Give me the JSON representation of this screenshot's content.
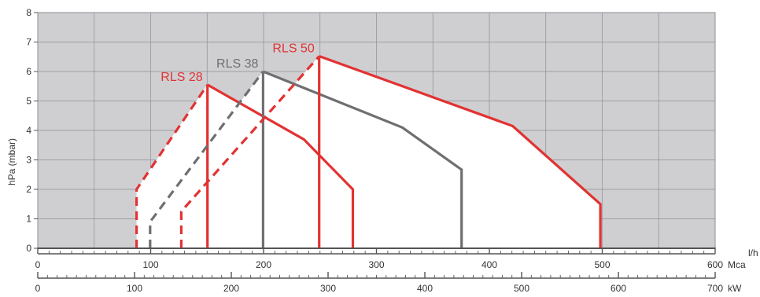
{
  "chart_data": {
    "type": "line",
    "title": "",
    "ylabel": "hPa (mbar)",
    "ylim": [
      0,
      8
    ],
    "yticks": [
      0,
      1,
      2,
      3,
      4,
      5,
      6,
      7,
      8
    ],
    "grid": true,
    "x_axes": [
      {
        "unit": "l/h",
        "unit_suffix": "Mca",
        "range": [
          0,
          600
        ],
        "ticks": [
          0,
          100,
          200,
          300,
          400,
          500,
          600
        ]
      },
      {
        "unit": "kW",
        "range": [
          0,
          700
        ],
        "ticks": [
          0,
          100,
          200,
          300,
          400,
          500,
          600,
          700
        ]
      }
    ],
    "colors": {
      "background": "#cfcfd2",
      "working_area": "#ffffff",
      "grid": "#8f8f93",
      "red": "#e23232",
      "gray": "#6f6f72"
    },
    "series": [
      {
        "name": "RLS 28",
        "color": "#e23232",
        "start": [
          [
            87.5,
            0
          ],
          [
            87.5,
            2.0
          ],
          [
            150.3,
            5.55
          ]
        ],
        "points": [
          [
            150.3,
            5.55
          ],
          [
            235.6,
            3.7
          ],
          [
            279.1,
            2.0
          ],
          [
            279.1,
            0
          ]
        ],
        "min_line": [
          [
            150.3,
            0
          ],
          [
            150.3,
            5.55
          ]
        ]
      },
      {
        "name": "RLS 38",
        "color": "#6f6f72",
        "start": [
          [
            99.5,
            0
          ],
          [
            99.5,
            0.9
          ],
          [
            199.6,
            6.0
          ]
        ],
        "points": [
          [
            199.6,
            6.0
          ],
          [
            322.9,
            4.1
          ],
          [
            375.4,
            2.67
          ],
          [
            375.4,
            0
          ]
        ],
        "min_line": [
          [
            199.6,
            0
          ],
          [
            199.6,
            6.0
          ]
        ]
      },
      {
        "name": "RLS 50",
        "color": "#e23232",
        "start": [
          [
            127.1,
            0
          ],
          [
            127.1,
            1.25
          ],
          [
            249.3,
            6.52
          ]
        ],
        "points": [
          [
            249.3,
            6.52
          ],
          [
            420.6,
            4.15
          ],
          [
            498.3,
            1.5
          ],
          [
            498.3,
            0
          ]
        ],
        "min_line": [
          [
            249.3,
            0
          ],
          [
            249.3,
            6.52
          ]
        ]
      }
    ]
  }
}
